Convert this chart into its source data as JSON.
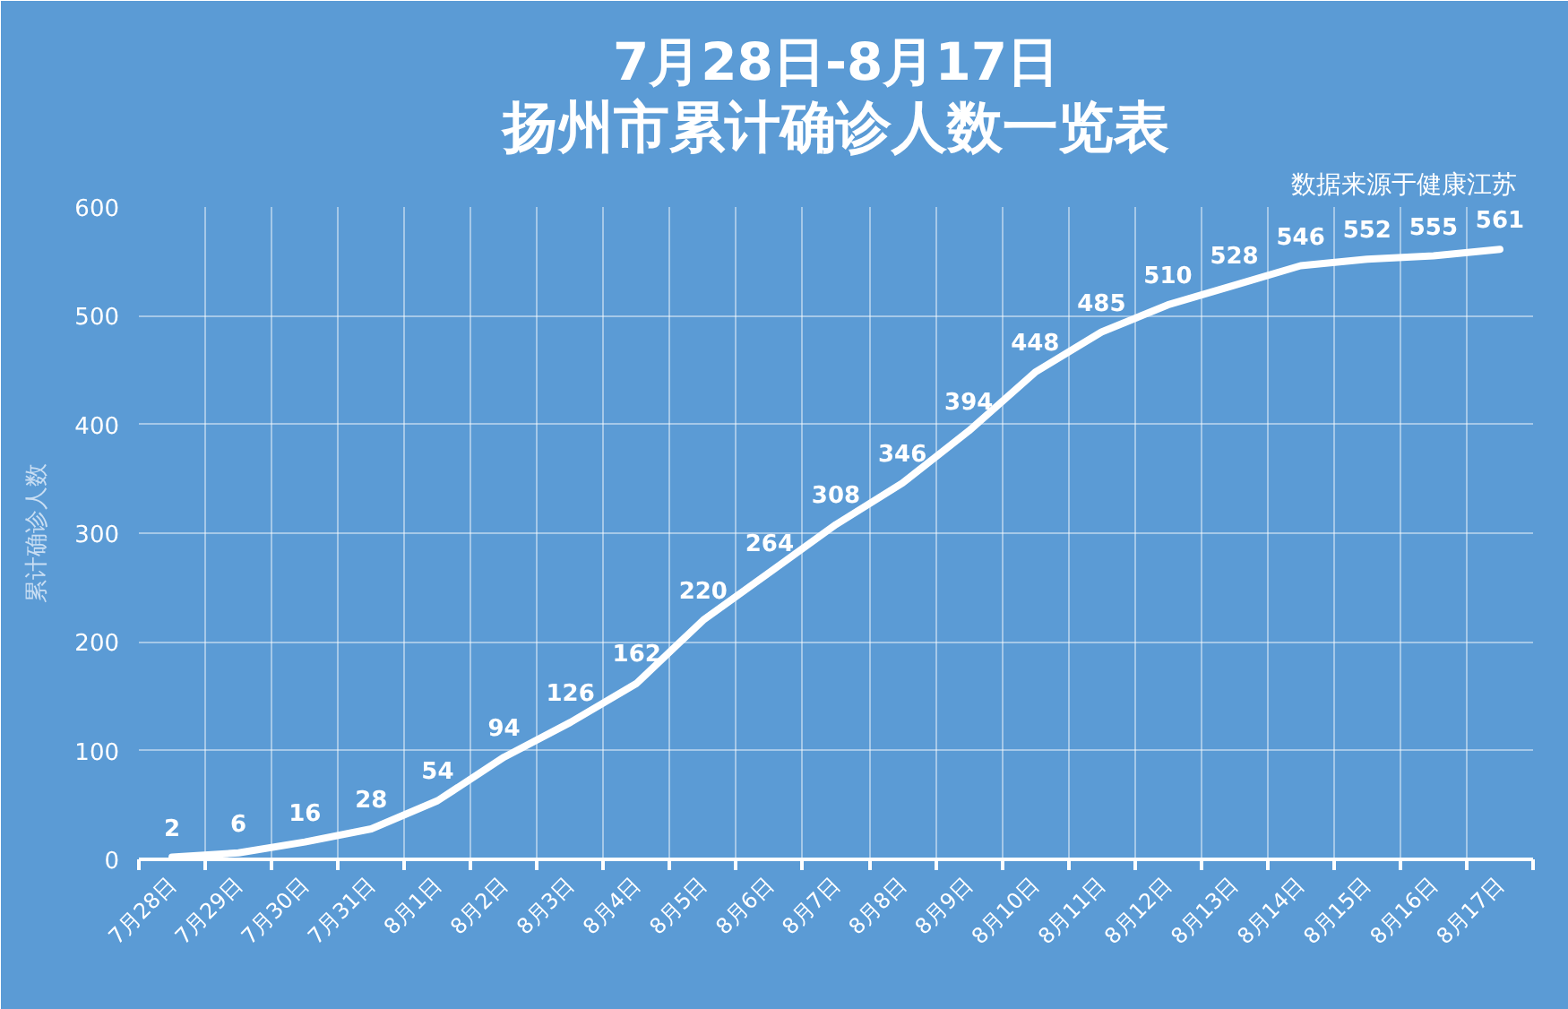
{
  "chart_data": {
    "type": "line",
    "title": "7月28日-8月17日",
    "subtitle": "扬州市累计确诊人数一览表",
    "ylabel": "累计确诊人数",
    "annotations": [
      "数据来源于健康江苏"
    ],
    "categories": [
      "7月28日",
      "7月29日",
      "7月30日",
      "7月31日",
      "8月1日",
      "8月2日",
      "8月3日",
      "8月4日",
      "8月5日",
      "8月6日",
      "8月7日",
      "8月8日",
      "8月9日",
      "8月10日",
      "8月11日",
      "8月12日",
      "8月13日",
      "8月14日",
      "8月15日",
      "8月16日",
      "8月17日"
    ],
    "series": [
      {
        "color": "#ffffff",
        "values": [
          2,
          6,
          16,
          28,
          54,
          94,
          126,
          162,
          220,
          264,
          308,
          346,
          394,
          448,
          485,
          510,
          528,
          546,
          552,
          555,
          561
        ]
      }
    ],
    "ylim": [
      0,
      600
    ],
    "yticks": [
      0,
      100,
      200,
      300,
      400,
      500,
      600
    ],
    "grid": true,
    "data_labels": true,
    "line_style": "solid"
  }
}
